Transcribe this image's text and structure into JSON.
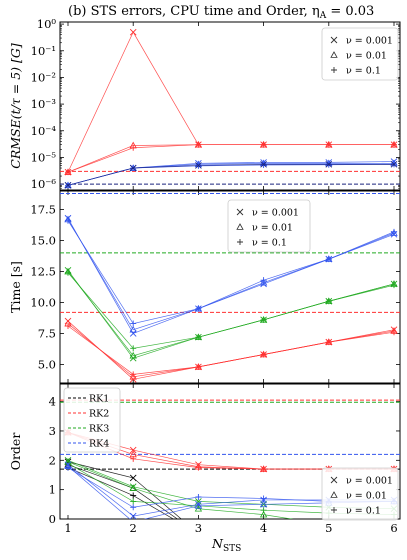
{
  "figure_title": "(b) STS errors, CPU time and Order, η",
  "figure_title_sub": "A",
  "figure_title_tail": " = 0.03",
  "xlabel_main": "N",
  "xlabel_sub": "STS",
  "x_ticks": [
    "1",
    "2",
    "3",
    "4",
    "5",
    "6"
  ],
  "marker_legend": [
    {
      "marker": "x",
      "label": "ν = 0.001"
    },
    {
      "marker": "triangle",
      "label": "ν = 0.01"
    },
    {
      "marker": "plus",
      "label": "ν = 0.1"
    }
  ],
  "colors": {
    "red": "#ff3030",
    "blue": "#3355ee",
    "green": "#22aa22",
    "black": "#000000",
    "navy": "#1a237e"
  },
  "chart_data": [
    {
      "type": "line",
      "title": "",
      "ylabel": "CRMSE(t/τ = 5) [G]",
      "yscale": "log",
      "ylim": [
        6e-07,
        1.2
      ],
      "y_ticks": [
        {
          "v": 1e-06,
          "label": "10⁻⁶"
        },
        {
          "v": 1e-05,
          "label": "10⁻⁵"
        },
        {
          "v": 0.0001,
          "label": "10⁻⁴"
        },
        {
          "v": 0.001,
          "label": "10⁻³"
        },
        {
          "v": 0.01,
          "label": "10⁻²"
        },
        {
          "v": 0.1,
          "label": "10⁻¹"
        },
        {
          "v": 1,
          "label": "10⁰"
        }
      ],
      "x": [
        1,
        2,
        3,
        4,
        5,
        6
      ],
      "hlines": [
        {
          "color": "red",
          "y": 3e-06
        },
        {
          "color": "navy",
          "y": 1e-06
        }
      ],
      "series": [
        {
          "color": "red",
          "marker": "x",
          "values": [
            2.8e-06,
            0.5,
            3e-05,
            3e-05,
            3e-05,
            3e-05
          ]
        },
        {
          "color": "red",
          "marker": "triangle",
          "values": [
            2.8e-06,
            2.8e-05,
            3e-05,
            3e-05,
            3e-05,
            3e-05
          ]
        },
        {
          "color": "red",
          "marker": "plus",
          "values": [
            2.8e-06,
            2.3e-05,
            3e-05,
            3e-05,
            3e-05,
            3e-05
          ]
        },
        {
          "color": "blue",
          "marker": "x",
          "values": [
            9e-07,
            4e-06,
            6e-06,
            6.5e-06,
            6.5e-06,
            7e-06
          ]
        },
        {
          "color": "blue",
          "marker": "triangle",
          "values": [
            9e-07,
            4e-06,
            5.5e-06,
            6e-06,
            6e-06,
            6e-06
          ]
        },
        {
          "color": "blue",
          "marker": "plus",
          "values": [
            9e-07,
            4e-06,
            4.8e-06,
            5.2e-06,
            5.3e-06,
            5.5e-06
          ]
        },
        {
          "color": "navy",
          "marker": "x",
          "values": [
            9e-07,
            4e-06,
            5e-06,
            5.5e-06,
            5.5e-06,
            5.5e-06
          ]
        }
      ]
    },
    {
      "type": "line",
      "title": "",
      "ylabel": "Time [s]",
      "yscale": "linear",
      "ylim": [
        3.5,
        19.0
      ],
      "y_ticks": [
        {
          "v": 5,
          "label": "5.0"
        },
        {
          "v": 7.5,
          "label": "7.5"
        },
        {
          "v": 10,
          "label": "10.0"
        },
        {
          "v": 12.5,
          "label": "12.5"
        },
        {
          "v": 15,
          "label": "15.0"
        },
        {
          "v": 17.5,
          "label": "17.5"
        }
      ],
      "x": [
        1,
        2,
        3,
        4,
        5,
        6
      ],
      "hlines": [
        {
          "color": "blue",
          "y": 18.8
        },
        {
          "color": "green",
          "y": 14.0
        },
        {
          "color": "red",
          "y": 9.2
        }
      ],
      "series": [
        {
          "color": "red",
          "marker": "x",
          "values": [
            8.5,
            3.8,
            4.8,
            5.8,
            6.8,
            7.8
          ]
        },
        {
          "color": "red",
          "marker": "triangle",
          "values": [
            8.3,
            4.0,
            4.8,
            5.8,
            6.8,
            7.7
          ]
        },
        {
          "color": "red",
          "marker": "plus",
          "values": [
            8.1,
            4.2,
            4.8,
            5.8,
            6.8,
            7.6
          ]
        },
        {
          "color": "green",
          "marker": "x",
          "values": [
            12.6,
            5.5,
            7.2,
            8.6,
            10.1,
            11.5
          ]
        },
        {
          "color": "green",
          "marker": "triangle",
          "values": [
            12.5,
            5.7,
            7.2,
            8.6,
            10.1,
            11.5
          ]
        },
        {
          "color": "green",
          "marker": "plus",
          "values": [
            12.4,
            6.3,
            7.2,
            8.6,
            10.1,
            11.4
          ]
        },
        {
          "color": "blue",
          "marker": "x",
          "values": [
            16.8,
            7.5,
            9.5,
            11.5,
            13.5,
            15.5
          ]
        },
        {
          "color": "blue",
          "marker": "triangle",
          "values": [
            16.7,
            7.8,
            9.5,
            11.6,
            13.5,
            15.6
          ]
        },
        {
          "color": "blue",
          "marker": "plus",
          "values": [
            16.6,
            8.3,
            9.5,
            11.8,
            13.5,
            15.7
          ]
        }
      ]
    },
    {
      "type": "line",
      "title": "",
      "ylabel": "Order",
      "yscale": "linear",
      "ylim": [
        0,
        4.6
      ],
      "y_ticks": [
        {
          "v": 0,
          "label": "0"
        },
        {
          "v": 1,
          "label": "1"
        },
        {
          "v": 2,
          "label": "2"
        },
        {
          "v": 3,
          "label": "3"
        },
        {
          "v": 4,
          "label": "4"
        }
      ],
      "x": [
        1,
        2,
        3,
        4,
        5,
        6
      ],
      "legend_lines": [
        {
          "color": "black",
          "label": "RK1"
        },
        {
          "color": "red",
          "label": "RK2"
        },
        {
          "color": "green",
          "label": "RK3"
        },
        {
          "color": "blue",
          "label": "RK4"
        }
      ],
      "hlines": [
        {
          "color": "black",
          "y": 1.7
        },
        {
          "color": "red",
          "y": 4.05
        },
        {
          "color": "green",
          "y": 3.98
        },
        {
          "color": "blue",
          "y": 2.2
        }
      ],
      "series": [
        {
          "color": "red",
          "marker": "x",
          "values": [
            2.95,
            2.35,
            1.85,
            1.7,
            1.7,
            1.7
          ]
        },
        {
          "color": "red",
          "marker": "triangle",
          "values": [
            2.95,
            2.2,
            1.78,
            1.7,
            1.7,
            1.7
          ]
        },
        {
          "color": "red",
          "marker": "plus",
          "values": [
            2.95,
            2.05,
            1.75,
            1.7,
            1.7,
            1.7
          ]
        },
        {
          "color": "black",
          "marker": "x",
          "values": [
            1.95,
            1.4,
            -0.5,
            -0.5,
            -0.5,
            -0.5
          ]
        },
        {
          "color": "black",
          "marker": "triangle",
          "values": [
            1.85,
            1.05,
            -0.5,
            -0.5,
            -0.5,
            -0.5
          ]
        },
        {
          "color": "black",
          "marker": "plus",
          "values": [
            1.75,
            0.8,
            -0.5,
            -0.5,
            -0.5,
            -0.5
          ]
        },
        {
          "color": "green",
          "marker": "x",
          "values": [
            2.0,
            1.1,
            0.6,
            0.5,
            0.4,
            0.35
          ]
        },
        {
          "color": "green",
          "marker": "triangle",
          "values": [
            1.95,
            1.05,
            0.35,
            0.15,
            -0.2,
            -0.3
          ]
        },
        {
          "color": "green",
          "marker": "plus",
          "values": [
            1.9,
            0.6,
            0.45,
            0.3,
            0.2,
            0.15
          ]
        },
        {
          "color": "blue",
          "marker": "x",
          "values": [
            1.85,
            0.1,
            0.5,
            0.65,
            0.65,
            0.65
          ]
        },
        {
          "color": "blue",
          "marker": "triangle",
          "values": [
            1.8,
            -0.1,
            0.45,
            0.5,
            0.55,
            0.6
          ]
        },
        {
          "color": "blue",
          "marker": "plus",
          "values": [
            1.75,
            0.4,
            0.75,
            0.7,
            0.6,
            0.6
          ]
        }
      ]
    }
  ]
}
